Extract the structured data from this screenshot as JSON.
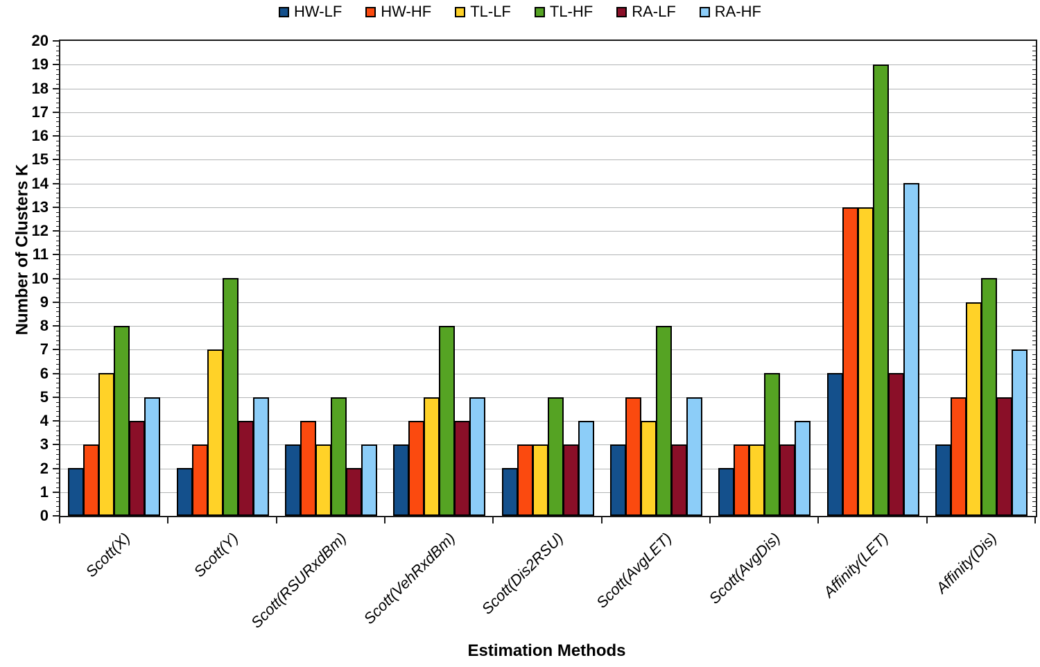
{
  "chart_data": {
    "type": "bar",
    "title": "",
    "xlabel": "Estimation Methods",
    "ylabel": "Number of Clusters K",
    "ylim": [
      0,
      20
    ],
    "ytick_step": 1,
    "minor_tick_step": 0.2,
    "grid": "horizontal-major",
    "legend_position": "top-center",
    "categories": [
      "Scott(X)",
      "Scott(Y)",
      "Scott(RSURxdBm)",
      "Scott(VehRxdBm)",
      "Scott(Dis2RSU)",
      "Scott(AvgLET)",
      "Scott(AvgDis)",
      "Affinity(LET)",
      "Affinity(Dis)"
    ],
    "series": [
      {
        "name": "HW-LF",
        "color": "#14508C",
        "values": [
          2,
          2,
          3,
          3,
          2,
          3,
          2,
          6,
          3
        ]
      },
      {
        "name": "HW-HF",
        "color": "#FB4A0F",
        "values": [
          3,
          3,
          4,
          4,
          3,
          5,
          3,
          13,
          5
        ]
      },
      {
        "name": "TL-LF",
        "color": "#FFD228",
        "values": [
          6,
          7,
          3,
          5,
          3,
          4,
          3,
          13,
          9
        ]
      },
      {
        "name": "TL-HF",
        "color": "#55A323",
        "values": [
          8,
          10,
          5,
          8,
          5,
          8,
          6,
          19,
          10
        ]
      },
      {
        "name": "RA-LF",
        "color": "#8A0F28",
        "values": [
          4,
          4,
          2,
          4,
          3,
          3,
          3,
          6,
          5
        ]
      },
      {
        "name": "RA-HF",
        "color": "#8CCDF8",
        "values": [
          5,
          5,
          3,
          5,
          4,
          5,
          4,
          14,
          7
        ]
      }
    ],
    "colors": {
      "plot_border": "#1a1a1a",
      "gridline": "#b2b4b5",
      "bar_outline": "#000000",
      "text": "#000000"
    }
  }
}
